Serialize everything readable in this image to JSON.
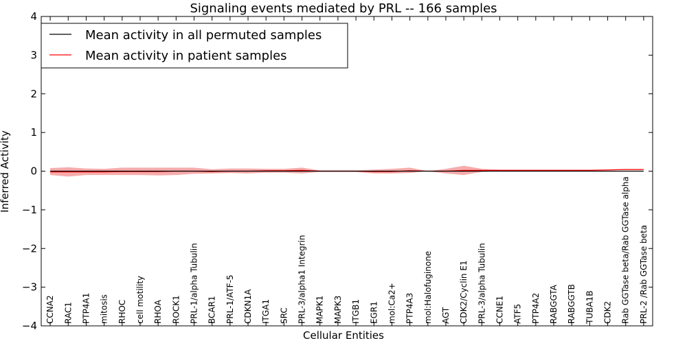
{
  "chart_data": {
    "type": "line",
    "title": "Signaling events mediated by PRL -- 166 samples",
    "xlabel": "Cellular Entities",
    "ylabel": "Inferred Activity",
    "ylim": [
      -4,
      4
    ],
    "yticks": [
      -4,
      -3,
      -2,
      -1,
      0,
      1,
      2,
      3,
      4
    ],
    "ytick_labels": [
      "−4",
      "−3",
      "−2",
      "−1",
      "0",
      "1",
      "2",
      "3",
      "4"
    ],
    "legend_position": "top-left",
    "categories": [
      "CCNA2",
      "RAC1",
      "PTP4A1",
      "mitosis",
      "RHOC",
      "cell motility",
      "RHOA",
      "ROCK1",
      "PRL-1/alpha Tubulin",
      "BCAR1",
      "PRL-1/ATF-5",
      "CDKN1A",
      "ITGA1",
      "SRC",
      "PRL-3/alpha1 Integrin",
      "MAPK1",
      "MAPK3",
      "ITGB1",
      "EGR1",
      "mol:Ca2+",
      "PTP4A3",
      "mol:Halofuginone",
      "AGT",
      "CDK2/Cyclin E1",
      "PRL-3/alpha Tubulin",
      "CCNE1",
      "ATF5",
      "PTP4A2",
      "RABGGTA",
      "RABGGTB",
      "TUBA1B",
      "CDK2",
      "Rab GGTase beta/Rab GGTase alpha",
      "PRL-2 /Rab GGTase beta"
    ],
    "series": [
      {
        "name": "Mean activity in all permuted samples",
        "color": "#000000",
        "values": [
          0,
          0,
          0,
          0,
          0,
          0,
          0,
          0,
          0,
          0,
          0,
          0,
          0,
          0,
          0,
          0,
          0,
          0,
          0,
          0,
          0,
          0,
          0,
          0,
          0,
          0,
          0,
          0,
          0,
          0,
          0,
          0,
          0,
          0
        ]
      },
      {
        "name": "Mean activity in patient samples",
        "color": "#ff0000",
        "band_color": "#f08080",
        "values": [
          -0.02,
          -0.02,
          -0.02,
          -0.02,
          -0.01,
          -0.01,
          -0.01,
          0.0,
          0.0,
          -0.01,
          0.0,
          0.0,
          0.01,
          0.01,
          0.02,
          0.0,
          0.0,
          0.0,
          -0.01,
          -0.01,
          0.01,
          0.0,
          0.0,
          0.02,
          0.02,
          0.02,
          0.02,
          0.02,
          0.02,
          0.02,
          0.02,
          0.03,
          0.04,
          0.04
        ],
        "lower": [
          -0.1,
          -0.14,
          -0.1,
          -0.1,
          -0.1,
          -0.1,
          -0.11,
          -0.1,
          -0.07,
          -0.06,
          -0.05,
          -0.06,
          -0.04,
          -0.04,
          -0.06,
          -0.02,
          -0.02,
          -0.02,
          -0.06,
          -0.06,
          -0.05,
          0.0,
          -0.06,
          -0.1,
          -0.02,
          0.01,
          0.01,
          0.01,
          0.01,
          0.01,
          0.01,
          0.02,
          0.03,
          0.03
        ],
        "upper": [
          0.08,
          0.1,
          0.07,
          0.06,
          0.09,
          0.09,
          0.09,
          0.09,
          0.09,
          0.05,
          0.07,
          0.07,
          0.06,
          0.06,
          0.09,
          0.02,
          0.02,
          0.02,
          0.04,
          0.06,
          0.09,
          0.0,
          0.06,
          0.14,
          0.06,
          0.04,
          0.04,
          0.04,
          0.04,
          0.04,
          0.04,
          0.05,
          0.06,
          0.06
        ]
      }
    ]
  }
}
